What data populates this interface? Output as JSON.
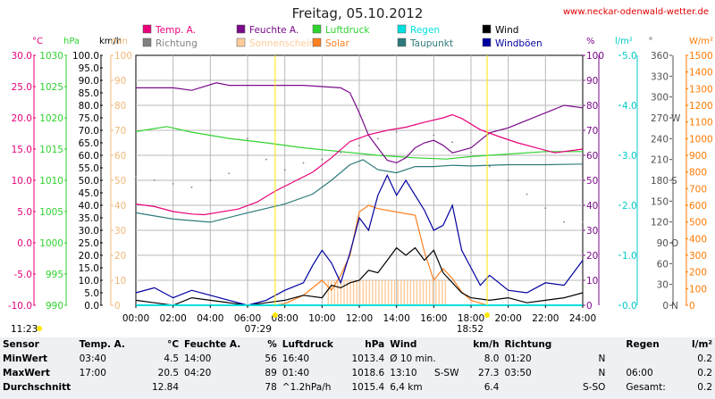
{
  "title": "Freitag, 05.10.2012",
  "site": "www.neckar-odenwald-wetter.de",
  "colors": {
    "temp": "#e8007a",
    "humidity": "#7a0a8a",
    "pressure": "#2fd22f",
    "rain": "#00e0e0",
    "wind": "#000000",
    "direction": "#808080",
    "sunshine": "#ffcc99",
    "solar": "#ff8020",
    "dewpoint": "#2e7a7a",
    "gust": "#0000a0"
  },
  "legend": [
    {
      "key": "temp",
      "label": "Temp. A."
    },
    {
      "key": "humidity",
      "label": "Feuchte A."
    },
    {
      "key": "pressure",
      "label": "Luftdruck"
    },
    {
      "key": "rain",
      "label": "Regen"
    },
    {
      "key": "wind",
      "label": "Wind"
    },
    {
      "key": "direction",
      "label": "Richtung"
    },
    {
      "key": "sunshine",
      "label": "Sonnenschein"
    },
    {
      "key": "solar",
      "label": "Solar"
    },
    {
      "key": "dewpoint",
      "label": "Taupunkt"
    },
    {
      "key": "gust",
      "label": "Windböen"
    }
  ],
  "chart_data": {
    "type": "line",
    "x_unit": "hour",
    "xlim": [
      0,
      24
    ],
    "x_ticks": [
      "00:00",
      "02:00",
      "04:00",
      "06:00",
      "08:00",
      "10:00",
      "12:00",
      "14:00",
      "16:00",
      "18:00",
      "20:00",
      "22:00",
      "24:00"
    ],
    "axes": [
      {
        "key": "temp",
        "unit": "°C",
        "range": [
          -10,
          30
        ],
        "ticks": [
          "-10.0",
          "-5.0",
          "0.0",
          "5.0",
          "10.0",
          "15.0",
          "20.0",
          "25.0",
          "30.0"
        ]
      },
      {
        "key": "pressure",
        "unit": "hPa",
        "range": [
          990,
          1030
        ],
        "ticks": [
          "990",
          "995",
          "1000",
          "1005",
          "1010",
          "1015",
          "1020",
          "1025",
          "1030"
        ]
      },
      {
        "key": "wind",
        "unit": "km/h",
        "range": [
          0,
          100
        ],
        "ticks": [
          "0.0",
          "5.0",
          "10.0",
          "15.0",
          "20.0",
          "25.0",
          "30.0",
          "35.0",
          "40.0",
          "45.0",
          "50.0",
          "55.0",
          "60.0",
          "65.0",
          "70.0",
          "75.0",
          "80.0",
          "85.0",
          "90.0",
          "95.0",
          "100.0"
        ]
      },
      {
        "key": "sunshine",
        "unit": "min",
        "range": [
          0,
          100
        ],
        "ticks": [
          "0",
          "10",
          "20",
          "30",
          "40",
          "50",
          "60",
          "70",
          "80",
          "90",
          "100"
        ]
      },
      {
        "key": "humidity",
        "unit": "%",
        "range": [
          0,
          100
        ],
        "ticks": [
          "0",
          "10",
          "20",
          "30",
          "40",
          "50",
          "60",
          "70",
          "80",
          "90",
          "100"
        ]
      },
      {
        "key": "rain",
        "unit": "l/m²",
        "range": [
          0,
          5
        ],
        "ticks": [
          "0.0",
          "1.0",
          "2.0",
          "3.0",
          "4.0",
          "5.0"
        ]
      },
      {
        "key": "direction",
        "unit": "°",
        "range": [
          0,
          360
        ],
        "ticks": [
          "0",
          "30",
          "60",
          "90",
          "120",
          "150",
          "180",
          "210",
          "240",
          "270",
          "300",
          "330",
          "360"
        ],
        "labels": [
          "N",
          "O",
          "S",
          "W"
        ]
      },
      {
        "key": "solar",
        "unit": "W/m²",
        "range": [
          0,
          1500
        ],
        "ticks": [
          "0",
          "100",
          "200",
          "300",
          "400",
          "500",
          "600",
          "700",
          "800",
          "900",
          "1000",
          "1100",
          "1200",
          "1300",
          "1400",
          "1500"
        ]
      }
    ],
    "series": [
      {
        "key": "temp",
        "name": "Temp. A.",
        "axis": "temp",
        "points": [
          [
            0,
            6.2
          ],
          [
            1,
            5.8
          ],
          [
            2,
            5
          ],
          [
            3,
            4.6
          ],
          [
            3.67,
            4.5
          ],
          [
            4.5,
            4.9
          ],
          [
            5.5,
            5.4
          ],
          [
            6.5,
            6.5
          ],
          [
            7.5,
            8.3
          ],
          [
            8.5,
            9.8
          ],
          [
            9.5,
            11.3
          ],
          [
            10.5,
            13.6
          ],
          [
            11.5,
            16.2
          ],
          [
            12.5,
            17.3
          ],
          [
            13.5,
            18
          ],
          [
            14.5,
            18.5
          ],
          [
            15.5,
            19.3
          ],
          [
            16.5,
            20
          ],
          [
            17,
            20.5
          ],
          [
            17.5,
            19.9
          ],
          [
            18.5,
            18.1
          ],
          [
            19.5,
            17
          ],
          [
            20.5,
            16
          ],
          [
            21.5,
            15.2
          ],
          [
            22.5,
            14.4
          ],
          [
            23.5,
            14.8
          ],
          [
            24,
            15
          ]
        ]
      },
      {
        "key": "humidity",
        "name": "Feuchte A.",
        "axis": "humidity",
        "points": [
          [
            0,
            87
          ],
          [
            2,
            87
          ],
          [
            3,
            86
          ],
          [
            4.33,
            89
          ],
          [
            5,
            88
          ],
          [
            6,
            88
          ],
          [
            7,
            88
          ],
          [
            8,
            88
          ],
          [
            9,
            88
          ],
          [
            10,
            87.5
          ],
          [
            11,
            87
          ],
          [
            11.5,
            85
          ],
          [
            12,
            77
          ],
          [
            12.5,
            68
          ],
          [
            13,
            63
          ],
          [
            13.5,
            58
          ],
          [
            14,
            57
          ],
          [
            14.5,
            59
          ],
          [
            15,
            63
          ],
          [
            15.5,
            65
          ],
          [
            16,
            66
          ],
          [
            16.5,
            64
          ],
          [
            17,
            61
          ],
          [
            17.5,
            62
          ],
          [
            18,
            63
          ],
          [
            18.5,
            66
          ],
          [
            19,
            69
          ],
          [
            20,
            71
          ],
          [
            21,
            74
          ],
          [
            22,
            77
          ],
          [
            23,
            80
          ],
          [
            24,
            79
          ]
        ]
      },
      {
        "key": "pressure",
        "name": "Luftdruck",
        "axis": "pressure",
        "points": [
          [
            0,
            1017.8
          ],
          [
            1.67,
            1018.6
          ],
          [
            3,
            1017.7
          ],
          [
            5,
            1016.7
          ],
          [
            7,
            1016
          ],
          [
            9,
            1015.2
          ],
          [
            11,
            1014.6
          ],
          [
            13,
            1014
          ],
          [
            15,
            1013.6
          ],
          [
            16.67,
            1013.4
          ],
          [
            18,
            1013.8
          ],
          [
            20,
            1014.2
          ],
          [
            22,
            1014.6
          ],
          [
            24,
            1014.6
          ]
        ]
      },
      {
        "key": "dewpoint",
        "name": "Taupunkt",
        "axis": "temp",
        "points": [
          [
            0,
            4.8
          ],
          [
            2,
            3.8
          ],
          [
            4,
            3.3
          ],
          [
            6,
            4.8
          ],
          [
            8,
            6.2
          ],
          [
            9.5,
            7.8
          ],
          [
            10.5,
            10
          ],
          [
            11.5,
            12.5
          ],
          [
            12.2,
            13.3
          ],
          [
            13,
            11.7
          ],
          [
            14,
            11.2
          ],
          [
            15,
            12.2
          ],
          [
            16,
            12.2
          ],
          [
            17,
            12.4
          ],
          [
            18,
            12.3
          ],
          [
            20,
            12.5
          ],
          [
            22,
            12.5
          ],
          [
            24,
            12.6
          ]
        ]
      },
      {
        "key": "wind",
        "name": "Wind",
        "axis": "wind",
        "points": [
          [
            0,
            2
          ],
          [
            1,
            1
          ],
          [
            2,
            0
          ],
          [
            3,
            3
          ],
          [
            4,
            2
          ],
          [
            5,
            1
          ],
          [
            6,
            0
          ],
          [
            7,
            1
          ],
          [
            8,
            2
          ],
          [
            9,
            4
          ],
          [
            10,
            3
          ],
          [
            10.5,
            8
          ],
          [
            11,
            7
          ],
          [
            11.5,
            9
          ],
          [
            12,
            10
          ],
          [
            12.5,
            14
          ],
          [
            13,
            13
          ],
          [
            13.5,
            18
          ],
          [
            14,
            23
          ],
          [
            14.5,
            20
          ],
          [
            15,
            23
          ],
          [
            15.5,
            18
          ],
          [
            16,
            22
          ],
          [
            16.5,
            13
          ],
          [
            17,
            9
          ],
          [
            17.5,
            5
          ],
          [
            18,
            3
          ],
          [
            19,
            2
          ],
          [
            20,
            3
          ],
          [
            21,
            1
          ],
          [
            22,
            2
          ],
          [
            23,
            3
          ],
          [
            24,
            5
          ]
        ]
      },
      {
        "key": "gust",
        "name": "Windböen",
        "axis": "wind",
        "points": [
          [
            0,
            5
          ],
          [
            1,
            7
          ],
          [
            2,
            3
          ],
          [
            3,
            6
          ],
          [
            4,
            4
          ],
          [
            5,
            2
          ],
          [
            6,
            0
          ],
          [
            7,
            2
          ],
          [
            8,
            6
          ],
          [
            9,
            9
          ],
          [
            9.5,
            16
          ],
          [
            10,
            22
          ],
          [
            10.5,
            17
          ],
          [
            11,
            9
          ],
          [
            11.5,
            21
          ],
          [
            12,
            35
          ],
          [
            12.5,
            30
          ],
          [
            13,
            44
          ],
          [
            13.5,
            52
          ],
          [
            14,
            44
          ],
          [
            14.5,
            50
          ],
          [
            15,
            44
          ],
          [
            15.5,
            38
          ],
          [
            16,
            30
          ],
          [
            16.5,
            32
          ],
          [
            17,
            40
          ],
          [
            17.5,
            22
          ],
          [
            18,
            15
          ],
          [
            18.5,
            8
          ],
          [
            19,
            12
          ],
          [
            20,
            6
          ],
          [
            21,
            5
          ],
          [
            22,
            9
          ],
          [
            23,
            8
          ],
          [
            24,
            18
          ]
        ]
      },
      {
        "key": "solar",
        "name": "Solar",
        "axis": "solar",
        "points": [
          [
            0,
            0
          ],
          [
            7.5,
            0
          ],
          [
            8,
            10
          ],
          [
            9,
            60
          ],
          [
            10,
            150
          ],
          [
            10.5,
            90
          ],
          [
            11,
            180
          ],
          [
            11.5,
            300
          ],
          [
            12,
            560
          ],
          [
            12.5,
            600
          ],
          [
            13,
            580
          ],
          [
            14,
            560
          ],
          [
            15,
            540
          ],
          [
            15.5,
            320
          ],
          [
            16,
            150
          ],
          [
            16.5,
            220
          ],
          [
            17,
            160
          ],
          [
            17.5,
            80
          ],
          [
            18,
            30
          ],
          [
            18.87,
            0
          ],
          [
            24,
            0
          ]
        ]
      },
      {
        "key": "rain",
        "name": "Regen",
        "axis": "rain",
        "points": [
          [
            0,
            0
          ],
          [
            24,
            0
          ]
        ]
      }
    ],
    "direction_samples": [
      [
        0,
        185
      ],
      [
        1,
        180
      ],
      [
        2,
        175
      ],
      [
        3,
        170
      ],
      [
        4,
        180
      ],
      [
        5,
        190
      ],
      [
        6,
        240
      ],
      [
        7,
        210
      ],
      [
        8,
        195
      ],
      [
        9,
        205
      ],
      [
        10,
        210
      ],
      [
        11,
        220
      ],
      [
        12,
        230
      ],
      [
        13,
        240
      ],
      [
        14,
        250
      ],
      [
        15,
        260
      ],
      [
        16,
        245
      ],
      [
        17,
        235
      ],
      [
        18,
        220
      ],
      [
        19,
        200
      ],
      [
        20,
        180
      ],
      [
        21,
        160
      ],
      [
        22,
        140
      ],
      [
        23,
        120
      ],
      [
        24,
        120
      ]
    ],
    "sun": {
      "sunrise": "07:29",
      "sunset": "18:52",
      "moon": "11:23"
    }
  },
  "stats": {
    "headers": [
      "Sensor",
      "Temp. A.",
      "°C",
      "Feuchte A.",
      "%",
      "Luftdruck",
      "hPa",
      "Wind",
      "km/h",
      "Richtung",
      "",
      "Regen",
      "l/m²"
    ],
    "rows": [
      {
        "label": "MinWert",
        "temp_time": "03:40",
        "temp": "4.5",
        "hum_time": "14:00",
        "hum": "56",
        "press_time": "16:40",
        "press": "1013.4",
        "wind_label": "Ø 10 min.",
        "wind": "8.0",
        "dir_time": "01:20",
        "dir": "N",
        "rain_time": "",
        "rain": "0.2"
      },
      {
        "label": "MaxWert",
        "temp_time": "17:00",
        "temp": "20.5",
        "hum_time": "04:20",
        "hum": "89",
        "press_time": "01:40",
        "press": "1018.6",
        "wind_label": "13:10",
        "wind_extra": "S-SW",
        "wind": "27.3",
        "dir_time": "03:50",
        "dir": "N",
        "rain_time": "06:00",
        "rain": "0.2"
      },
      {
        "label": "Durchschnitt",
        "temp_time": "",
        "temp": "12.84",
        "hum_time": "",
        "hum": "78",
        "press_time": "^1.2hPa/h",
        "press": "1015.4",
        "wind_label": "6,4 km",
        "wind": "6.4",
        "dir_time": "",
        "dir": "S-SO",
        "rain_time": "Gesamt:",
        "rain": "0.2"
      }
    ]
  }
}
